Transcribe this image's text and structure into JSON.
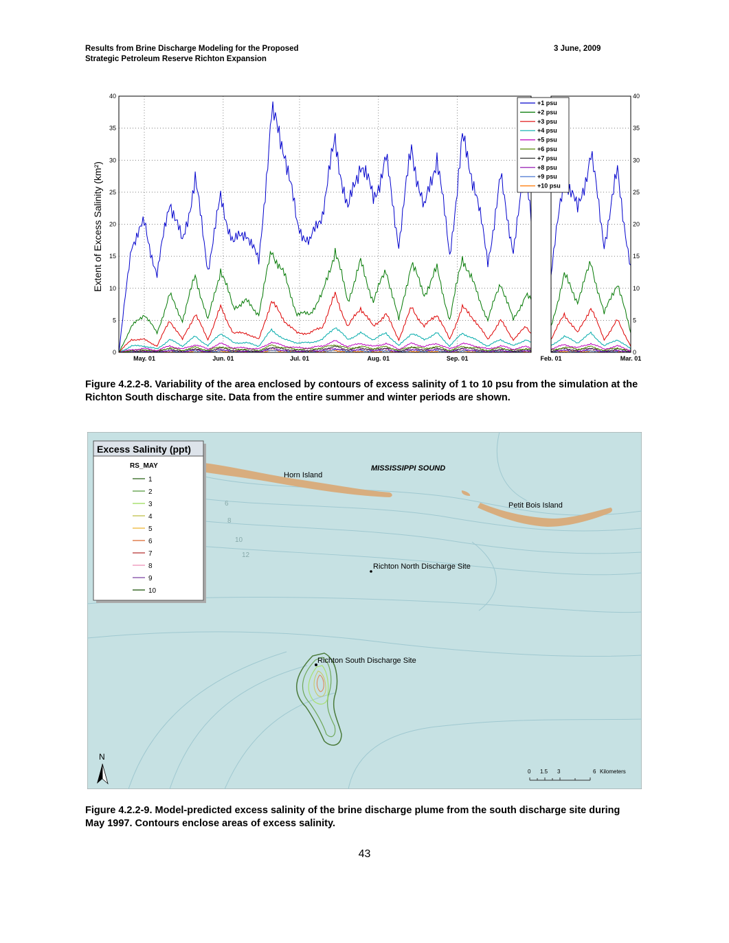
{
  "header": {
    "title_line1": "Results from Brine Discharge Modeling for the Proposed",
    "title_line2": "Strategic Petroleum Reserve Richton Expansion",
    "date": "3 June, 2009"
  },
  "chart_data": {
    "type": "line",
    "title": "",
    "ylabel": "Extent of Excess Salinity (km²)",
    "xlabel": "",
    "ylim": [
      0,
      40
    ],
    "yticks": [
      "0",
      "5",
      "10",
      "15",
      "20",
      "25",
      "30",
      "35",
      "40"
    ],
    "xticks": [
      "May. 01",
      "Jun. 01",
      "Jul. 01",
      "Aug. 01",
      "Sep. 01",
      "Feb. 01",
      "Mar. 01"
    ],
    "legend_position": "top-right",
    "grid": true,
    "summer_x": [
      0,
      5,
      10,
      15,
      20,
      25,
      30,
      35,
      40,
      45,
      50,
      55,
      60,
      65,
      70,
      75,
      80,
      85,
      90,
      95,
      100,
      105,
      110,
      115,
      120,
      125,
      130,
      135,
      140,
      145,
      150,
      155,
      160,
      162
    ],
    "winter_x": [
      0,
      5,
      10,
      15,
      20,
      25,
      30
    ],
    "series": [
      {
        "name": "+1 psu",
        "color": "#0000cc",
        "summer": [
          0,
          17,
          20,
          12,
          24,
          17,
          27,
          13,
          24,
          17,
          19,
          14,
          37,
          32,
          20,
          17,
          22,
          33,
          22,
          30,
          24,
          30,
          17,
          32,
          22,
          31,
          15,
          33,
          26,
          14,
          27,
          16,
          29,
          22
        ],
        "winter": [
          12,
          28,
          22,
          31,
          17,
          28,
          13
        ]
      },
      {
        "name": "+2 psu",
        "color": "#007700",
        "summer": [
          0,
          4,
          6,
          3,
          9,
          5,
          12,
          5,
          13,
          7,
          8,
          6,
          16,
          12,
          6,
          6,
          9,
          16,
          8,
          14,
          8,
          13,
          5,
          14,
          9,
          13,
          5,
          15,
          10,
          5,
          11,
          5,
          9,
          8
        ],
        "winter": [
          4,
          12,
          8,
          14,
          6,
          11,
          3
        ]
      },
      {
        "name": "+3 psu",
        "color": "#dd0000",
        "summer": [
          0,
          2,
          2,
          1,
          5,
          2,
          6,
          2,
          7,
          3,
          3,
          2,
          8,
          5,
          3,
          3,
          4,
          9,
          4,
          7,
          4,
          6,
          2,
          7,
          4,
          6,
          2,
          7,
          5,
          2,
          5,
          2,
          4,
          3
        ],
        "winter": [
          2,
          6,
          3,
          7,
          2,
          5,
          1
        ]
      },
      {
        "name": "+4 psu",
        "color": "#00aaaa",
        "summer": [
          0,
          1,
          1,
          0.5,
          2,
          1,
          2.5,
          1,
          3,
          1.5,
          1.5,
          1,
          3.5,
          2,
          1.5,
          1.5,
          2,
          4,
          2,
          3,
          2,
          3,
          1,
          3,
          2,
          3,
          1,
          3,
          2,
          1,
          2,
          1,
          2,
          1.5
        ],
        "winter": [
          1,
          2.5,
          1.5,
          3,
          1,
          2,
          0.5
        ]
      },
      {
        "name": "+5 psu",
        "color": "#bb00bb",
        "summer": [
          0,
          0.4,
          0.6,
          0.3,
          1,
          0.5,
          1.2,
          0.5,
          1.4,
          0.7,
          0.7,
          0.5,
          1.6,
          1,
          0.7,
          0.7,
          1,
          1.8,
          0.9,
          1.4,
          0.9,
          1.4,
          0.5,
          1.4,
          0.9,
          1.4,
          0.5,
          1.4,
          1,
          0.5,
          1,
          0.5,
          0.9,
          0.7
        ],
        "winter": [
          0.5,
          1.2,
          0.7,
          1.4,
          0.5,
          1,
          0.3
        ]
      },
      {
        "name": "+6 psu",
        "color": "#558800",
        "summer": [
          0,
          0.3,
          0.4,
          0.2,
          0.7,
          0.3,
          0.8,
          0.3,
          0.9,
          0.5,
          0.5,
          0.3,
          1.1,
          0.7,
          0.5,
          0.5,
          0.7,
          1.2,
          0.6,
          0.9,
          0.6,
          0.9,
          0.3,
          0.9,
          0.6,
          0.9,
          0.3,
          0.9,
          0.7,
          0.3,
          0.7,
          0.3,
          0.6,
          0.5
        ],
        "winter": [
          0.3,
          0.8,
          0.5,
          0.9,
          0.3,
          0.7,
          0.2
        ]
      },
      {
        "name": "+7 psu",
        "color": "#333333",
        "summer": [
          0,
          0.2,
          0.3,
          0.2,
          0.5,
          0.2,
          0.6,
          0.2,
          0.7,
          0.3,
          0.3,
          0.2,
          0.8,
          0.5,
          0.3,
          0.3,
          0.5,
          0.9,
          0.4,
          0.7,
          0.4,
          0.7,
          0.2,
          0.7,
          0.4,
          0.7,
          0.2,
          0.7,
          0.5,
          0.2,
          0.5,
          0.2,
          0.4,
          0.3
        ],
        "winter": [
          0.2,
          0.6,
          0.3,
          0.7,
          0.2,
          0.5,
          0.1
        ]
      },
      {
        "name": "+8 psu",
        "color": "#8800aa",
        "summer": [
          0,
          0.1,
          0.2,
          0.1,
          0.3,
          0.1,
          0.4,
          0.1,
          0.5,
          0.2,
          0.2,
          0.1,
          0.6,
          0.3,
          0.2,
          0.2,
          0.3,
          0.6,
          0.3,
          0.5,
          0.3,
          0.5,
          0.1,
          0.5,
          0.3,
          0.5,
          0.1,
          0.5,
          0.3,
          0.1,
          0.3,
          0.1,
          0.3,
          0.2
        ],
        "winter": [
          0.1,
          0.4,
          0.2,
          0.5,
          0.1,
          0.3,
          0.1
        ]
      },
      {
        "name": "+9 psu",
        "color": "#3366cc",
        "summer": [
          0,
          0.1,
          0.1,
          0.1,
          0.2,
          0.1,
          0.3,
          0.1,
          0.3,
          0.1,
          0.1,
          0.1,
          0.4,
          0.2,
          0.1,
          0.1,
          0.2,
          0.4,
          0.2,
          0.3,
          0.2,
          0.3,
          0.1,
          0.3,
          0.2,
          0.3,
          0.1,
          0.3,
          0.2,
          0.1,
          0.2,
          0.1,
          0.2,
          0.1
        ],
        "winter": [
          0.1,
          0.3,
          0.1,
          0.3,
          0.1,
          0.2,
          0.0
        ]
      },
      {
        "name": "+10 psu",
        "color": "#ff7700",
        "summer": [
          0,
          0.0,
          0.1,
          0.0,
          0.1,
          0.0,
          0.2,
          0.0,
          0.2,
          0.1,
          0.1,
          0.0,
          0.3,
          0.1,
          0.1,
          0.1,
          0.1,
          0.3,
          0.1,
          0.2,
          0.1,
          0.2,
          0.0,
          0.2,
          0.1,
          0.2,
          0.0,
          0.2,
          0.1,
          0.0,
          0.1,
          0.0,
          0.1,
          0.1
        ],
        "winter": [
          0.0,
          0.2,
          0.1,
          0.2,
          0.0,
          0.1,
          0.0
        ]
      }
    ]
  },
  "figure1": {
    "caption": "Figure 4.2.2-8. Variability of the area enclosed by contours of excess salinity of 1 to 10 psu from the simulation at the Richton South discharge site. Data from the entire summer and winter periods are shown."
  },
  "map": {
    "legend_title": "Excess Salinity (ppt)",
    "legend_layer": "RS_MAY",
    "legend_items": [
      {
        "label": "1",
        "color": "#4a7a3a"
      },
      {
        "label": "2",
        "color": "#6fa85a"
      },
      {
        "label": "3",
        "color": "#a8e070"
      },
      {
        "label": "4",
        "color": "#c8c860"
      },
      {
        "label": "5",
        "color": "#f0c050"
      },
      {
        "label": "6",
        "color": "#e08050"
      },
      {
        "label": "7",
        "color": "#c05050"
      },
      {
        "label": "8",
        "color": "#f0a0c0"
      },
      {
        "label": "9",
        "color": "#9060b0"
      },
      {
        "label": "10",
        "color": "#3a6a2a"
      }
    ],
    "labels": {
      "sound": "MISSISSIPPI SOUND",
      "horn": "Horn Island",
      "petit": "Petit Bois Island",
      "north_site": "Richton North Discharge Site",
      "south_site": "Richton South Discharge Site"
    },
    "depth_labels": [
      "6",
      "8",
      "10",
      "12"
    ],
    "scale": {
      "ticks": [
        "0",
        "1.5",
        "3",
        "6"
      ],
      "unit": "Kilometers"
    },
    "north_label": "N",
    "water_color": "#c6e1e3",
    "island_color": "#d8ad7e"
  },
  "figure2": {
    "caption": "Figure 4.2.2-9. Model-predicted excess salinity of the brine discharge plume from the south discharge site during May 1997. Contours enclose areas of excess salinity."
  },
  "page_number": "43"
}
